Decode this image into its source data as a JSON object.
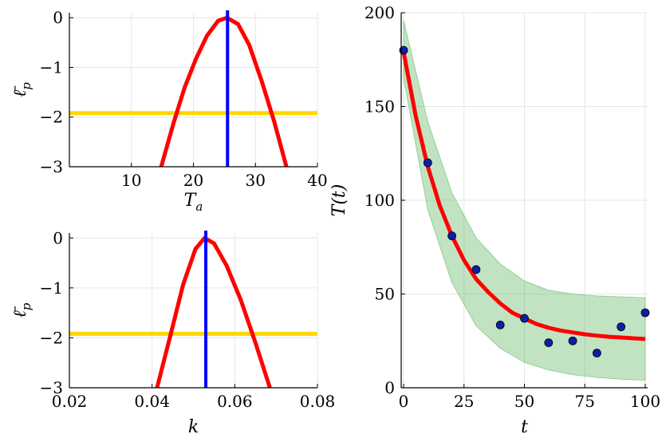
{
  "chart_data": [
    {
      "type": "line",
      "xlabel": "T",
      "xlabel_sub": "a",
      "ylabel": "ℓ̄",
      "ylabel_sub": "p",
      "xlim": [
        0,
        40
      ],
      "ylim": [
        -3,
        0.1
      ],
      "xticks": [
        10,
        20,
        30,
        40
      ],
      "xtick_labels": [
        "10",
        "20",
        "30",
        "40"
      ],
      "yticks": [
        -3,
        -2,
        -1,
        0
      ],
      "ytick_labels": [
        "−3",
        "−2",
        "−1",
        "0"
      ],
      "grid": true,
      "colors": {
        "profile": "#ff0000",
        "threshold": "#ffd700",
        "mle": "#0000ff"
      },
      "series": [
        {
          "kind": "curve",
          "x": [
            14.8,
            16.8,
            18.6,
            20.4,
            22.2,
            24.0,
            25.4,
            27.2,
            29.0,
            31.0,
            33.0,
            35.0
          ],
          "y": [
            -3.0,
            -2.12,
            -1.4,
            -0.83,
            -0.36,
            -0.06,
            0.0,
            -0.13,
            -0.55,
            -1.27,
            -2.08,
            -3.0
          ]
        },
        {
          "kind": "hline",
          "y": -1.92
        },
        {
          "kind": "vline",
          "x": 25.5
        }
      ]
    },
    {
      "type": "line",
      "xlabel": "k",
      "ylabel": "ℓ̄",
      "ylabel_sub": "p",
      "xlim": [
        0.02,
        0.08
      ],
      "ylim": [
        -3,
        0.1
      ],
      "xticks": [
        0.02,
        0.04,
        0.06,
        0.08
      ],
      "xtick_labels": [
        "0.02",
        "0.04",
        "0.06",
        "0.08"
      ],
      "yticks": [
        -3,
        -2,
        -1,
        0
      ],
      "ytick_labels": [
        "−3",
        "−2",
        "−1",
        "0"
      ],
      "grid": true,
      "colors": {
        "profile": "#ff0000",
        "threshold": "#ffd700",
        "mle": "#0000ff"
      },
      "series": [
        {
          "kind": "curve",
          "x": [
            0.0412,
            0.0445,
            0.0475,
            0.0505,
            0.0527,
            0.055,
            0.058,
            0.0615,
            0.065,
            0.0685
          ],
          "y": [
            -3.0,
            -1.93,
            -0.94,
            -0.22,
            0.0,
            -0.11,
            -0.55,
            -1.25,
            -2.1,
            -3.0
          ]
        },
        {
          "kind": "hline",
          "y": -1.92
        },
        {
          "kind": "vline",
          "x": 0.053
        }
      ]
    },
    {
      "type": "scatter",
      "xlabel": "t",
      "ylabel": "T(t)",
      "xlim": [
        -1,
        101
      ],
      "ylim": [
        0,
        200
      ],
      "xticks": [
        0,
        25,
        50,
        75,
        100
      ],
      "xtick_labels": [
        "0",
        "25",
        "50",
        "75",
        "100"
      ],
      "yticks": [
        0,
        50,
        100,
        150,
        200
      ],
      "ytick_labels": [
        "0",
        "50",
        "100",
        "150",
        "200"
      ],
      "grid": true,
      "colors": {
        "fit": "#ff0000",
        "band": "#4caf50",
        "points": "#0b1fa8"
      },
      "points": {
        "x": [
          0,
          10,
          20,
          30,
          40,
          50,
          60,
          70,
          80,
          90,
          100
        ],
        "y": [
          180,
          120,
          81,
          63,
          33.5,
          37,
          24,
          25,
          18.5,
          32.5,
          40
        ]
      },
      "fit": {
        "x": [
          0,
          5,
          10,
          15,
          20,
          25,
          30,
          35,
          40,
          45,
          50,
          55,
          60,
          65,
          70,
          75,
          80,
          85,
          90,
          95,
          100
        ],
        "y": [
          179,
          145,
          118,
          97,
          81,
          68,
          58,
          51,
          45,
          40,
          37,
          34,
          32,
          30.5,
          29.5,
          28.5,
          27.8,
          27.2,
          26.8,
          26.4,
          26
        ]
      },
      "band": {
        "x": [
          0,
          10,
          20,
          30,
          40,
          50,
          60,
          70,
          80,
          90,
          100
        ],
        "lower": [
          165,
          95,
          56,
          33,
          21,
          13.5,
          9.5,
          7,
          5.5,
          4.5,
          4
        ],
        "upper": [
          196,
          142,
          104,
          80,
          66,
          57,
          52,
          50,
          49,
          48.5,
          48
        ]
      }
    }
  ]
}
